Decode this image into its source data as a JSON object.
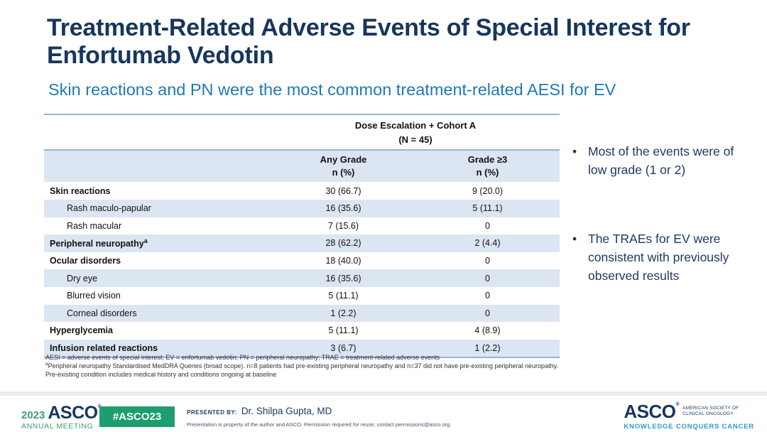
{
  "slide": {
    "title": "Treatment-Related Adverse Events of Special Interest for Enfortumab Vedotin",
    "subtitle": "Skin reactions and PN were the most common treatment-related AESI for EV"
  },
  "table": {
    "group_header_line1": "Dose Escalation + Cohort A",
    "group_header_line2": "(N = 45)",
    "columns": [
      {
        "line1": "Any Grade",
        "line2": "n (%)"
      },
      {
        "line1": "Grade ≥3",
        "line2": "n (%)"
      }
    ],
    "rows": [
      {
        "label": "Skin reactions",
        "any_grade": "30 (66.7)",
        "grade3": "9 (20.0)"
      },
      {
        "label": "Rash maculo-papular",
        "any_grade": "16 (35.6)",
        "grade3": "5 (11.1)"
      },
      {
        "label": "Rash macular",
        "any_grade": "7 (15.6)",
        "grade3": "0"
      },
      {
        "label": "Peripheral neuropathy",
        "sup": "a",
        "any_grade": "28 (62.2)",
        "grade3": "2 (4.4)"
      },
      {
        "label": "Ocular disorders",
        "any_grade": "18 (40.0)",
        "grade3": "0"
      },
      {
        "label": "Dry eye",
        "any_grade": "16 (35.6)",
        "grade3": "0"
      },
      {
        "label": "Blurred vision",
        "any_grade": "5 (11.1)",
        "grade3": "0"
      },
      {
        "label": "Corneal disorders",
        "any_grade": "1 (2.2)",
        "grade3": "0"
      },
      {
        "label": "Hyperglycemia",
        "any_grade": "5 (11.1)",
        "grade3": "4 (8.9)"
      },
      {
        "label": "Infusion related reactions",
        "any_grade": "3 (6.7)",
        "grade3": "1 (2.2)"
      }
    ]
  },
  "bullets": [
    "Most of the events were of low grade (1 or 2)",
    "The TRAEs for EV were consistent with previously observed results"
  ],
  "bullet_marker": "•",
  "footnotes": {
    "line1": "AESI = adverse events of special interest; EV = enfortumab vedotin; PN = peripheral neuropathy; TRAE = treatment-related adverse events",
    "note_a_sup": "a",
    "note_a": "Peripheral neuropathy Standardised MedDRA Queries (broad scope). n=8 patients had pre-existing peripheral neuropathy and n=37 did not have pre-existing peripheral neuropathy. Pre-existing condition includes medical history and conditions ongoing at baseline"
  },
  "footer": {
    "meeting_year": "2023",
    "meeting_name": "ASCO",
    "meeting_reg": "®",
    "meeting_sub": "ANNUAL MEETING",
    "hashtag": "#ASCO23",
    "presented_by_label": "PRESENTED BY:",
    "presenter": "Dr. Shilpa Gupta, MD",
    "disclaimer": "Presentation is property of the author and ASCO. Permission required for reuse; contact permissions@asco.org.",
    "asco_logo": "ASCO",
    "asco_reg": "®",
    "asco_society_line1": "AMERICAN SOCIETY OF",
    "asco_society_line2": "CLINICAL ONCOLOGY",
    "asco_tagline": "KNOWLEDGE CONQUERS CANCER"
  },
  "colors": {
    "title_navy": "#17365D",
    "subtitle_blue": "#1E79B6",
    "table_border_blue": "#95B3D7",
    "row_shade_blue": "#DCE6F2",
    "asco_green": "#1E9E6E",
    "tagline_teal": "#2B9CC9"
  }
}
